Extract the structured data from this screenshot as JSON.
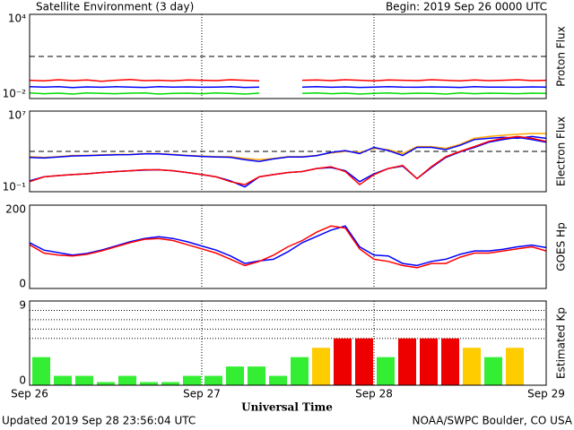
{
  "title": "Satellite Environment (3 day)",
  "begin": "Begin:  2019 Sep 26 0000 UTC",
  "updated": "Updated 2019 Sep 28 23:56:04 UTC",
  "credit": "NOAA/SWPC Boulder, CO USA",
  "time_axis": {
    "xlabel": "Universal Time",
    "xlim": [
      0,
      72
    ],
    "xticks": [
      {
        "value": 0,
        "label": "Sep 26"
      },
      {
        "value": 24,
        "label": "Sep 27"
      },
      {
        "value": 48,
        "label": "Sep 28"
      },
      {
        "value": 72,
        "label": "Sep 29"
      }
    ]
  },
  "chart_data": [
    {
      "type": "line",
      "ylabel": "Proton Flux",
      "log": true,
      "ylim": [
        0.01,
        10000
      ],
      "yticks": [
        {
          "value": 10000,
          "label": "10⁴"
        },
        {
          "value": 0.01,
          "label": "10⁻²"
        }
      ],
      "hlines": [
        10
      ],
      "x": [
        0,
        2,
        4,
        6,
        8,
        10,
        12,
        14,
        16,
        18,
        20,
        22,
        24,
        26,
        28,
        30,
        32,
        34,
        36,
        38,
        40,
        42,
        44,
        46,
        48,
        50,
        52,
        54,
        56,
        58,
        60,
        62,
        64,
        66,
        68,
        70,
        72
      ],
      "series": [
        {
          "color": "#ff0000",
          "values": [
            0.2,
            0.18,
            0.22,
            0.19,
            0.21,
            0.17,
            0.2,
            0.23,
            0.19,
            0.2,
            0.18,
            0.21,
            0.2,
            0.19,
            0.22,
            0.2,
            0.18,
            null,
            null,
            0.2,
            0.21,
            0.19,
            0.22,
            0.2,
            0.18,
            0.21,
            0.2,
            0.19,
            0.22,
            0.2,
            0.18,
            0.21,
            0.19,
            0.2,
            0.22,
            0.19,
            0.2
          ]
        },
        {
          "color": "#0000ff",
          "values": [
            0.07,
            0.065,
            0.07,
            0.06,
            0.068,
            0.064,
            0.07,
            0.066,
            0.062,
            0.07,
            0.065,
            0.068,
            0.064,
            0.066,
            0.07,
            0.062,
            0.065,
            null,
            null,
            0.066,
            0.07,
            0.064,
            0.068,
            0.062,
            0.066,
            0.07,
            0.065,
            0.064,
            0.068,
            0.066,
            0.062,
            0.07,
            0.065,
            0.066,
            0.064,
            0.068,
            0.066
          ]
        },
        {
          "color": "#00dd00",
          "values": [
            0.025,
            0.022,
            0.024,
            0.021,
            0.025,
            0.023,
            0.022,
            0.024,
            0.025,
            0.021,
            0.023,
            0.024,
            0.022,
            0.025,
            0.023,
            0.021,
            0.024,
            null,
            null,
            0.023,
            0.025,
            0.022,
            0.024,
            0.021,
            0.023,
            0.025,
            0.022,
            0.024,
            0.023,
            0.021,
            0.025,
            0.022,
            0.024,
            0.023,
            0.022,
            0.024,
            0.023
          ]
        }
      ]
    },
    {
      "type": "line",
      "ylabel": "Electron Flux",
      "log": true,
      "ylim": [
        0.1,
        10000000
      ],
      "yticks": [
        {
          "value": 10000000,
          "label": "10⁷"
        },
        {
          "value": 0.1,
          "label": "10⁻¹"
        }
      ],
      "hlines": [
        1000
      ],
      "x": [
        0,
        2,
        4,
        6,
        8,
        10,
        12,
        14,
        16,
        18,
        20,
        22,
        24,
        26,
        28,
        30,
        32,
        34,
        36,
        38,
        40,
        42,
        44,
        46,
        48,
        50,
        52,
        54,
        56,
        58,
        60,
        62,
        64,
        66,
        68,
        70,
        72
      ],
      "series": [
        {
          "color": "#ffa500",
          "values": [
            300,
            250,
            300,
            400,
            400,
            450,
            500,
            500,
            600,
            600,
            500,
            400,
            350,
            300,
            300,
            200,
            150,
            200,
            300,
            300,
            400,
            700,
            1000,
            800,
            2000,
            1500,
            600,
            3000,
            3000,
            2000,
            5000,
            20000,
            30000,
            40000,
            50000,
            60000,
            60000
          ]
        },
        {
          "color": "#0000ff",
          "values": [
            250,
            220,
            280,
            350,
            380,
            420,
            460,
            480,
            560,
            560,
            460,
            380,
            320,
            280,
            260,
            150,
            100,
            180,
            280,
            280,
            380,
            800,
            1200,
            600,
            2500,
            1200,
            400,
            2500,
            2500,
            1500,
            4000,
            15000,
            20000,
            25000,
            20000,
            30000,
            20000
          ]
        },
        {
          "color": "#0000ff",
          "values": [
            1.2,
            3,
            4,
            5,
            6,
            8,
            10,
            12,
            14,
            15,
            12,
            8,
            5,
            3,
            1.2,
            0.3,
            3,
            5,
            8,
            10,
            20,
            25,
            12,
            1,
            6,
            20,
            35,
            2,
            25,
            250,
            900,
            2500,
            8000,
            15000,
            25000,
            15000,
            8000
          ]
        },
        {
          "color": "#ff0000",
          "values": [
            1,
            3,
            4,
            5,
            6,
            8,
            10,
            12,
            15,
            15,
            12,
            8,
            5,
            3,
            1,
            0.5,
            3,
            5,
            8,
            10,
            20,
            30,
            10,
            0.5,
            5,
            20,
            40,
            2,
            30,
            300,
            1000,
            3000,
            10000,
            20000,
            30000,
            20000,
            10000
          ]
        }
      ]
    },
    {
      "type": "line",
      "ylabel": "GOES Hp",
      "log": false,
      "ylim": [
        0,
        200
      ],
      "yticks": [
        0,
        200
      ],
      "x": [
        0,
        2,
        4,
        6,
        8,
        10,
        12,
        14,
        16,
        18,
        20,
        22,
        24,
        26,
        28,
        30,
        32,
        34,
        36,
        38,
        40,
        42,
        44,
        46,
        48,
        50,
        52,
        54,
        56,
        58,
        60,
        62,
        64,
        66,
        68,
        70,
        72
      ],
      "series": [
        {
          "color": "#0000ff",
          "values": [
            110,
            92,
            86,
            80,
            84,
            92,
            102,
            112,
            120,
            124,
            120,
            112,
            102,
            92,
            78,
            60,
            66,
            70,
            88,
            110,
            125,
            140,
            150,
            100,
            80,
            78,
            60,
            55,
            65,
            70,
            82,
            90,
            90,
            94,
            100,
            104,
            98
          ]
        },
        {
          "color": "#ff0000",
          "values": [
            105,
            85,
            80,
            78,
            82,
            90,
            100,
            110,
            118,
            120,
            115,
            105,
            95,
            85,
            70,
            55,
            65,
            80,
            100,
            115,
            135,
            150,
            145,
            95,
            70,
            65,
            55,
            50,
            60,
            60,
            75,
            85,
            85,
            90,
            95,
            100,
            90
          ]
        }
      ]
    },
    {
      "type": "bar",
      "ylabel": "Estimated Kp",
      "ylim": [
        0,
        9
      ],
      "yticks": [
        0,
        9
      ],
      "hlines": [
        5,
        6,
        7,
        8
      ],
      "x": [
        0,
        3,
        6,
        9,
        12,
        15,
        18,
        21,
        24,
        27,
        30,
        33,
        36,
        39,
        42,
        45,
        48,
        51,
        54,
        57,
        60,
        63,
        66
      ],
      "values": [
        3,
        1,
        1,
        0.33,
        1,
        0.33,
        0.33,
        1,
        1,
        2,
        2,
        1,
        3,
        4,
        5,
        5,
        3,
        5,
        5,
        5,
        4,
        3,
        4
      ],
      "colors": [
        "#33ee33",
        "#33ee33",
        "#33ee33",
        "#33ee33",
        "#33ee33",
        "#33ee33",
        "#33ee33",
        "#33ee33",
        "#33ee33",
        "#33ee33",
        "#33ee33",
        "#33ee33",
        "#33ee33",
        "#ffcc00",
        "#ee0000",
        "#ee0000",
        "#33ee33",
        "#ee0000",
        "#ee0000",
        "#ee0000",
        "#ffcc00",
        "#33ee33",
        "#ffcc00"
      ]
    }
  ]
}
